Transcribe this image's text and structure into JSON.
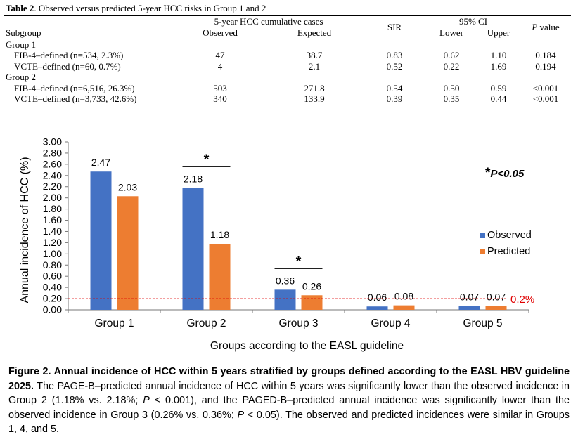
{
  "table": {
    "caption_label": "Table 2",
    "caption_text": ". Observed versus predicted 5-year HCC risks in Group 1 and 2",
    "headers": {
      "subgroup": "Subgroup",
      "cumulative": "5-year HCC cumulative cases",
      "observed": "Observed",
      "expected": "Expected",
      "sir": "SIR",
      "ci": "95% CI",
      "lower": "Lower",
      "upper": "Upper",
      "p_italic": "P",
      "p_rest": " value"
    },
    "groups": [
      {
        "label": "Group 1",
        "rows": [
          {
            "subgroup": "FIB-4–defined (n=534, 2.3%)",
            "observed": "47",
            "expected": "38.7",
            "sir": "0.83",
            "lower": "0.62",
            "upper": "1.10",
            "p": "0.184"
          },
          {
            "subgroup": "VCTE–defined (n=60, 0.7%)",
            "observed": "4",
            "expected": "2.1",
            "sir": "0.52",
            "lower": "0.22",
            "upper": "1.69",
            "p": "0.194"
          }
        ]
      },
      {
        "label": "Group 2",
        "rows": [
          {
            "subgroup": "FIB-4–defined (n=6,516, 26.3%)",
            "observed": "503",
            "expected": "271.8",
            "sir": "0.54",
            "lower": "0.50",
            "upper": "0.59",
            "p": "<0.001"
          },
          {
            "subgroup": "VCTE–defined (n=3,733, 42.6%)",
            "observed": "340",
            "expected": "133.9",
            "sir": "0.39",
            "lower": "0.35",
            "upper": "0.44",
            "p": "<0.001"
          }
        ]
      }
    ]
  },
  "chart_data": {
    "type": "bar",
    "categories": [
      "Group 1",
      "Group 2",
      "Group 3",
      "Group 4",
      "Group 5"
    ],
    "series": [
      {
        "name": "Observed",
        "values": [
          2.47,
          2.18,
          0.36,
          0.06,
          0.07
        ],
        "labels": [
          "2.47",
          "2.18",
          "0.36",
          "0.06",
          "0.07"
        ],
        "color": "#4472C4"
      },
      {
        "name": "Predicted",
        "values": [
          2.03,
          1.18,
          0.26,
          0.08,
          0.07
        ],
        "labels": [
          "2.03",
          "1.18",
          "0.26",
          "0.08",
          "0.07"
        ],
        "color": "#ED7D31"
      }
    ],
    "ylabel": "Annual incidence of HCC (%)",
    "xlabel": "Groups according to the EASL guideline",
    "ylim": [
      0,
      3.0
    ],
    "ytick_labels": [
      "0.00",
      "0.20",
      "0.40",
      "0.60",
      "0.80",
      "1.00",
      "1.20",
      "1.40",
      "1.60",
      "1.80",
      "2.00",
      "2.20",
      "2.40",
      "2.60",
      "2.80",
      "3.00"
    ],
    "reference_line": {
      "value": 0.2,
      "label": "0.2%",
      "color": "#E00000",
      "style": "dashed"
    },
    "significance_groups": [
      1,
      2
    ],
    "significance_marker": "*",
    "annotation": {
      "star": "*",
      "text": "P<0.05"
    },
    "legend_position": "right",
    "grid": false
  },
  "figure_caption": {
    "title": "Figure 2. Annual incidence of HCC within 5 years stratified by groups defined according to the EASL HBV guideline 2025.",
    "parts": [
      " The PAGE-B–predicted annual incidence of HCC within 5 years was significantly lower than the observed incidence in Group 2 (1.18% vs. 2.18%; ",
      "P",
      " < 0.001), and the PAGED-B–predicted annual incidence was significantly lower than the observed incidence in Group 3 (0.26% vs. 0.36%; ",
      "P",
      " < 0.05). The observed and predicted incidences were similar in Groups 1, 4, and 5."
    ]
  }
}
